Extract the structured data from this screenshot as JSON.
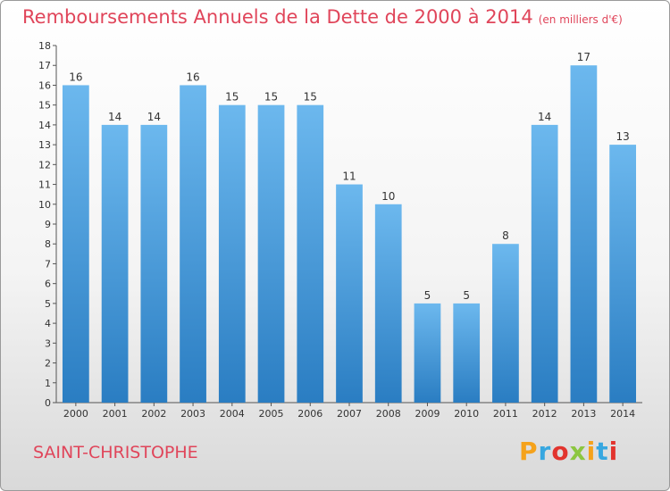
{
  "header": {
    "title": "Remboursements Annuels de la Dette de 2000 à 2014",
    "unit": "(en milliers d'€)"
  },
  "footer": {
    "commune": "SAINT-CHRISTOPHE",
    "logo_letters": [
      "P",
      "r",
      "o",
      "x",
      "i",
      "t",
      "i"
    ],
    "logo_colors": [
      "#f5a21b",
      "#37a7e0",
      "#e2342e",
      "#8cc63f",
      "#f5a21b",
      "#37a7e0",
      "#e2342e"
    ]
  },
  "colors": {
    "bar_top": "#6cb8ee",
    "bar_bottom": "#2a7dc2",
    "text_accent": "#e0455a"
  },
  "chart_data": {
    "type": "bar",
    "title": "Remboursements Annuels de la Dette de 2000 à 2014",
    "subtitle": "(en milliers d'€)",
    "xlabel": "",
    "ylabel": "",
    "ylim": [
      0,
      18
    ],
    "yticks": [
      0,
      1,
      2,
      3,
      4,
      5,
      6,
      7,
      8,
      9,
      10,
      11,
      12,
      13,
      14,
      15,
      16,
      17,
      18
    ],
    "grid": false,
    "legend": "none",
    "categories": [
      "2000",
      "2001",
      "2002",
      "2003",
      "2004",
      "2005",
      "2006",
      "2007",
      "2008",
      "2009",
      "2010",
      "2011",
      "2012",
      "2013",
      "2014"
    ],
    "values": [
      16,
      14,
      14,
      16,
      15,
      15,
      15,
      11,
      10,
      5,
      5,
      8,
      14,
      17,
      13
    ]
  }
}
